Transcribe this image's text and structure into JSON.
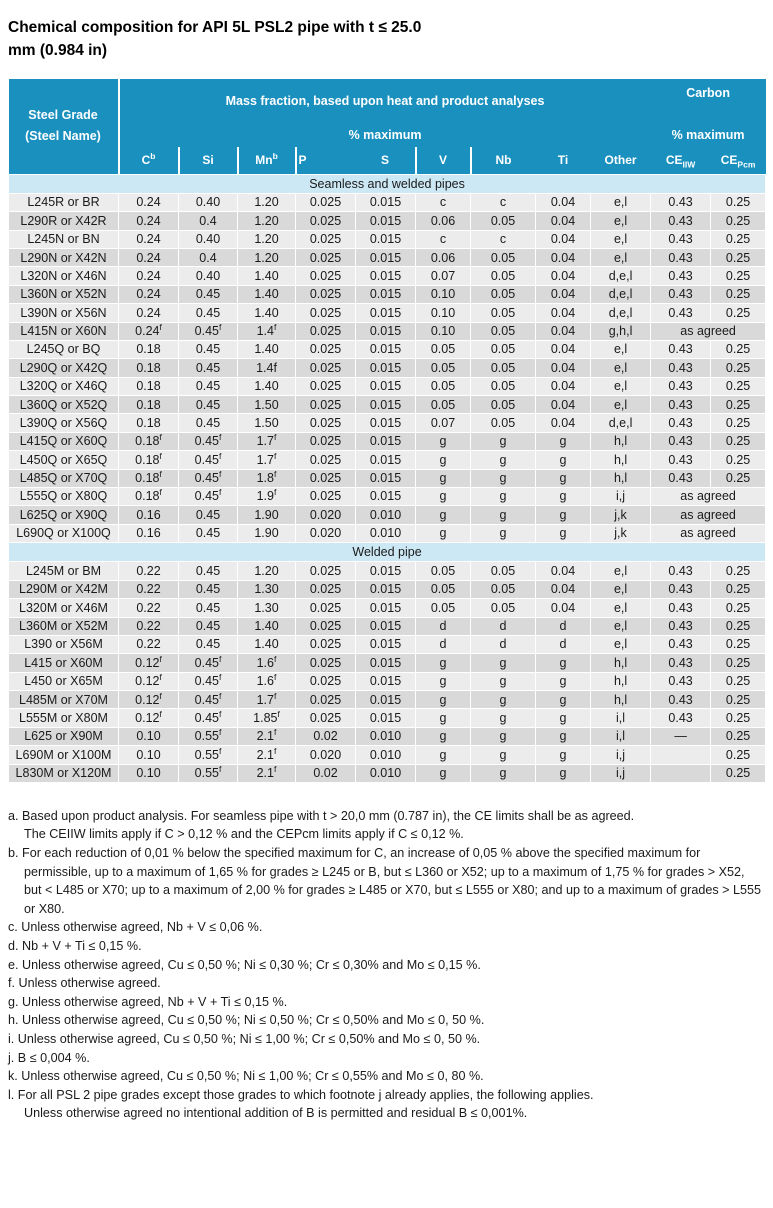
{
  "title_line1": "Chemical composition for API 5L PSL2 pipe with t ≤ 25.0",
  "title_line2": "mm (0.984 in)",
  "colors": {
    "header_blue": "#1a90bf",
    "section_light_blue": "#cde8f5",
    "row_light_gray": "#ececec",
    "row_dark_gray": "#d9d9d9",
    "header_text": "#ffffff",
    "body_text": "#1a1a1a"
  },
  "table": {
    "corner_line1": "Steel Grade",
    "corner_line2": "(Steel Name)",
    "mass_fraction_header": "Mass fraction, based upon heat and product analyses",
    "mass_pct_max": "% maximum",
    "carbon_header": "Carbon",
    "carbon_pct_max": "% maximum",
    "columns": [
      {
        "label": "C",
        "sup": "b"
      },
      {
        "label": "Si",
        "divider": true
      },
      {
        "label": "Mn",
        "sup": "b",
        "divider": true
      },
      {
        "label": "P",
        "divider": true,
        "align": "left"
      },
      {
        "label": "S"
      },
      {
        "label": "V",
        "divider": true
      },
      {
        "label": "Nb",
        "divider": true
      },
      {
        "label": "Ti"
      },
      {
        "label": "Other"
      },
      {
        "label": "CE",
        "sub": "IIW"
      },
      {
        "label": "CE",
        "sub": "Pcm"
      }
    ],
    "sections": [
      {
        "title": "Seamless and welded pipes",
        "rows": [
          {
            "grade": "L245R or BR",
            "cells": [
              "0.24",
              "0.40",
              "1.20",
              "0.025",
              "0.015",
              "c",
              "c",
              "0.04",
              "e,l",
              "0.43",
              "0.25"
            ]
          },
          {
            "grade": "L290R or X42R",
            "cells": [
              "0.24",
              "0.4",
              "1.20",
              "0.025",
              "0.015",
              "0.06",
              "0.05",
              "0.04",
              "e,l",
              "0.43",
              "0.25"
            ]
          },
          {
            "grade": "L245N or BN",
            "cells": [
              "0.24",
              "0.40",
              "1.20",
              "0.025",
              "0.015",
              "c",
              "c",
              "0.04",
              "e,l",
              "0.43",
              "0.25"
            ]
          },
          {
            "grade": "L290N or X42N",
            "cells": [
              "0.24",
              "0.4",
              "1.20",
              "0.025",
              "0.015",
              "0.06",
              "0.05",
              "0.04",
              "e,l",
              "0.43",
              "0.25"
            ]
          },
          {
            "grade": "L320N or X46N",
            "cells": [
              "0.24",
              "0.40",
              "1.40",
              "0.025",
              "0.015",
              "0.07",
              "0.05",
              "0.04",
              "d,e,l",
              "0.43",
              "0.25"
            ]
          },
          {
            "grade": "L360N or X52N",
            "cells": [
              "0.24",
              "0.45",
              "1.40",
              "0.025",
              "0.015",
              "0.10",
              "0.05",
              "0.04",
              "d,e,l",
              "0.43",
              "0.25"
            ]
          },
          {
            "grade": "L390N or X56N",
            "cells": [
              "0.24",
              "0.45",
              "1.40",
              "0.025",
              "0.015",
              "0.10",
              "0.05",
              "0.04",
              "d,e,l",
              "0.43",
              "0.25"
            ]
          },
          {
            "grade": "L415N or X60N",
            "cells": [
              "0.24^f",
              "0.45^f",
              "1.4^f",
              "0.025",
              "0.015",
              "0.10",
              "0.05",
              "0.04",
              "g,h,l",
              {
                "t": "as agreed",
                "span": 2
              }
            ]
          },
          {
            "grade": "L245Q or BQ",
            "cells": [
              "0.18",
              "0.45",
              "1.40",
              "0.025",
              "0.015",
              "0.05",
              "0.05",
              "0.04",
              "e,l",
              "0.43",
              "0.25"
            ]
          },
          {
            "grade": "L290Q or X42Q",
            "cells": [
              "0.18",
              "0.45",
              "1.4f",
              "0.025",
              "0.015",
              "0.05",
              "0.05",
              "0.04",
              "e,l",
              "0.43",
              "0.25"
            ]
          },
          {
            "grade": "L320Q or X46Q",
            "cells": [
              "0.18",
              "0.45",
              "1.40",
              "0.025",
              "0.015",
              "0.05",
              "0.05",
              "0.04",
              "e,l",
              "0.43",
              "0.25"
            ]
          },
          {
            "grade": "L360Q or X52Q",
            "cells": [
              "0.18",
              "0.45",
              "1.50",
              "0.025",
              "0.015",
              "0.05",
              "0.05",
              "0.04",
              "e,l",
              "0.43",
              "0.25"
            ]
          },
          {
            "grade": "L390Q or X56Q",
            "cells": [
              "0.18",
              "0.45",
              "1.50",
              "0.025",
              "0.015",
              "0.07",
              "0.05",
              "0.04",
              "d,e,l",
              "0.43",
              "0.25"
            ]
          },
          {
            "grade": "L415Q or X60Q",
            "cells": [
              "0.18^f",
              "0.45^f",
              "1.7^f",
              "0.025",
              "0.015",
              "g",
              "g",
              "g",
              "h,l",
              "0.43",
              "0.25"
            ]
          },
          {
            "grade": "L450Q or X65Q",
            "cells": [
              "0.18^f",
              "0.45^f",
              "1.7^f",
              "0.025",
              "0.015",
              "g",
              "g",
              "g",
              "h,l",
              "0.43",
              "0.25"
            ]
          },
          {
            "grade": "L485Q or X70Q",
            "cells": [
              "0.18^f",
              "0.45^f",
              "1.8^f",
              "0.025",
              "0.015",
              "g",
              "g",
              "g",
              "h,l",
              "0.43",
              "0.25"
            ]
          },
          {
            "grade": "L555Q or X80Q",
            "cells": [
              "0.18^f",
              "0.45^f",
              "1.9^f",
              "0.025",
              "0.015",
              "g",
              "g",
              "g",
              "i,j",
              {
                "t": "as agreed",
                "span": 2
              }
            ]
          },
          {
            "grade": "L625Q or X90Q",
            "cells": [
              "0.16",
              "0.45",
              "1.90",
              "0.020",
              "0.010",
              "g",
              "g",
              "g",
              "j,k",
              {
                "t": "as agreed",
                "span": 2
              }
            ]
          },
          {
            "grade": "L690Q or X100Q",
            "cells": [
              "0.16",
              "0.45",
              "1.90",
              "0.020",
              "0.010",
              "g",
              "g",
              "g",
              "j,k",
              {
                "t": "as agreed",
                "span": 2
              }
            ]
          }
        ]
      },
      {
        "title": "Welded pipe",
        "rows": [
          {
            "grade": "L245M or BM",
            "cells": [
              "0.22",
              "0.45",
              "1.20",
              "0.025",
              "0.015",
              "0.05",
              "0.05",
              "0.04",
              "e,l",
              "0.43",
              "0.25"
            ]
          },
          {
            "grade": "L290M or X42M",
            "cells": [
              "0.22",
              "0.45",
              "1.30",
              "0.025",
              "0.015",
              "0.05",
              "0.05",
              "0.04",
              "e,l",
              "0.43",
              "0.25"
            ]
          },
          {
            "grade": "L320M or X46M",
            "cells": [
              "0.22",
              "0.45",
              "1.30",
              "0.025",
              "0.015",
              "0.05",
              "0.05",
              "0.04",
              "e,l",
              "0.43",
              "0.25"
            ]
          },
          {
            "grade": "L360M or X52M",
            "cells": [
              "0.22",
              "0.45",
              "1.40",
              "0.025",
              "0.015",
              "d",
              "d",
              "d",
              "e,l",
              "0.43",
              "0.25"
            ]
          },
          {
            "grade": "L390 or X56M",
            "cells": [
              "0.22",
              "0.45",
              "1.40",
              "0.025",
              "0.015",
              "d",
              "d",
              "d",
              "e,l",
              "0.43",
              "0.25"
            ]
          },
          {
            "grade": "L415 or X60M",
            "cells": [
              "0.12^f",
              "0.45^f",
              "1.6^f",
              "0.025",
              "0.015",
              "g",
              "g",
              "g",
              "h,l",
              "0.43",
              "0.25"
            ]
          },
          {
            "grade": "L450 or X65M",
            "cells": [
              "0.12^f",
              "0.45^f",
              "1.6^f",
              "0.025",
              "0.015",
              "g",
              "g",
              "g",
              "h,l",
              "0.43",
              "0.25"
            ]
          },
          {
            "grade": "L485M or X70M",
            "cells": [
              "0.12^f",
              "0.45^f",
              "1.7^f",
              "0.025",
              "0.015",
              "g",
              "g",
              "g",
              "h,l",
              "0.43",
              "0.25"
            ]
          },
          {
            "grade": "L555M or X80M",
            "cells": [
              "0.12^f",
              "0.45^f",
              "1.85^f",
              "0.025",
              "0.015",
              "g",
              "g",
              "g",
              "i,l",
              "0.43",
              "0.25"
            ]
          },
          {
            "grade": "L625 or X90M",
            "cells": [
              "0.10",
              "0.55^f",
              "2.1^f",
              "0.02",
              "0.010",
              "g",
              "g",
              "g",
              "i,l",
              "—",
              "0.25"
            ]
          },
          {
            "grade": "L690M or X100M",
            "cells": [
              "0.10",
              "0.55^f",
              "2.1^f",
              "0.020",
              "0.010",
              "g",
              "g",
              "g",
              "i,j",
              "",
              "0.25"
            ]
          },
          {
            "grade": "L830M or X120M",
            "cells": [
              "0.10",
              "0.55^f",
              "2.1^f",
              "0.02",
              "0.010",
              "g",
              "g",
              "g",
              "i,j",
              "",
              "0.25"
            ]
          }
        ]
      }
    ]
  },
  "footnotes": [
    {
      "label": "a",
      "lines": [
        "Based upon product analysis. For seamless pipe with t > 20,0 mm (0.787 in), the CE limits shall be as agreed.",
        "The CEIIW limits apply if C > 0,12 % and the CEPcm limits apply if C ≤ 0,12 %."
      ]
    },
    {
      "label": "b",
      "lines": [
        "For each reduction of 0,01 % below the specified maximum for C, an increase of 0,05 % above the specified maximum for permissible, up to a maximum of 1,65 % for grades ≥ L245 or B, but ≤ L360 or X52; up to a maximum of 1,75 % for grades > X52, but < L485 or X70; up to a maximum of 2,00 % for grades ≥ L485 or X70, but ≤ L555 or X80; and up to a maximum of grades > L555 or X80."
      ]
    },
    {
      "label": "c",
      "lines": [
        "Unless otherwise agreed, Nb + V ≤ 0,06 %."
      ]
    },
    {
      "label": "d",
      "lines": [
        "Nb + V + Ti ≤ 0,15 %."
      ]
    },
    {
      "label": "e",
      "lines": [
        "Unless otherwise agreed, Cu ≤ 0,50 %; Ni ≤ 0,30 %; Cr ≤ 0,30% and Mo ≤ 0,15 %."
      ]
    },
    {
      "label": "f",
      "lines": [
        "Unless otherwise agreed."
      ]
    },
    {
      "label": "g",
      "lines": [
        "Unless otherwise agreed, Nb + V + Ti ≤ 0,15 %."
      ]
    },
    {
      "label": "h",
      "lines": [
        "Unless otherwise agreed, Cu ≤ 0,50 %; Ni ≤ 0,50 %; Cr ≤ 0,50% and Mo ≤ 0, 50 %."
      ]
    },
    {
      "label": "i",
      "lines": [
        "Unless otherwise agreed, Cu ≤ 0,50 %; Ni ≤ 1,00 %; Cr ≤ 0,50% and Mo ≤ 0, 50 %."
      ]
    },
    {
      "label": "j",
      "lines": [
        "B ≤ 0,004 %."
      ]
    },
    {
      "label": "k",
      "lines": [
        "Unless otherwise agreed, Cu ≤ 0,50 %; Ni ≤ 1,00 %; Cr ≤ 0,55% and Mo ≤ 0, 80 %."
      ]
    },
    {
      "label": "l",
      "lines": [
        "For all PSL 2 pipe grades except those grades to which footnote j already applies, the following applies.",
        "Unless otherwise agreed no intentional addition of B is permitted and residual B ≤ 0,001%."
      ]
    }
  ]
}
